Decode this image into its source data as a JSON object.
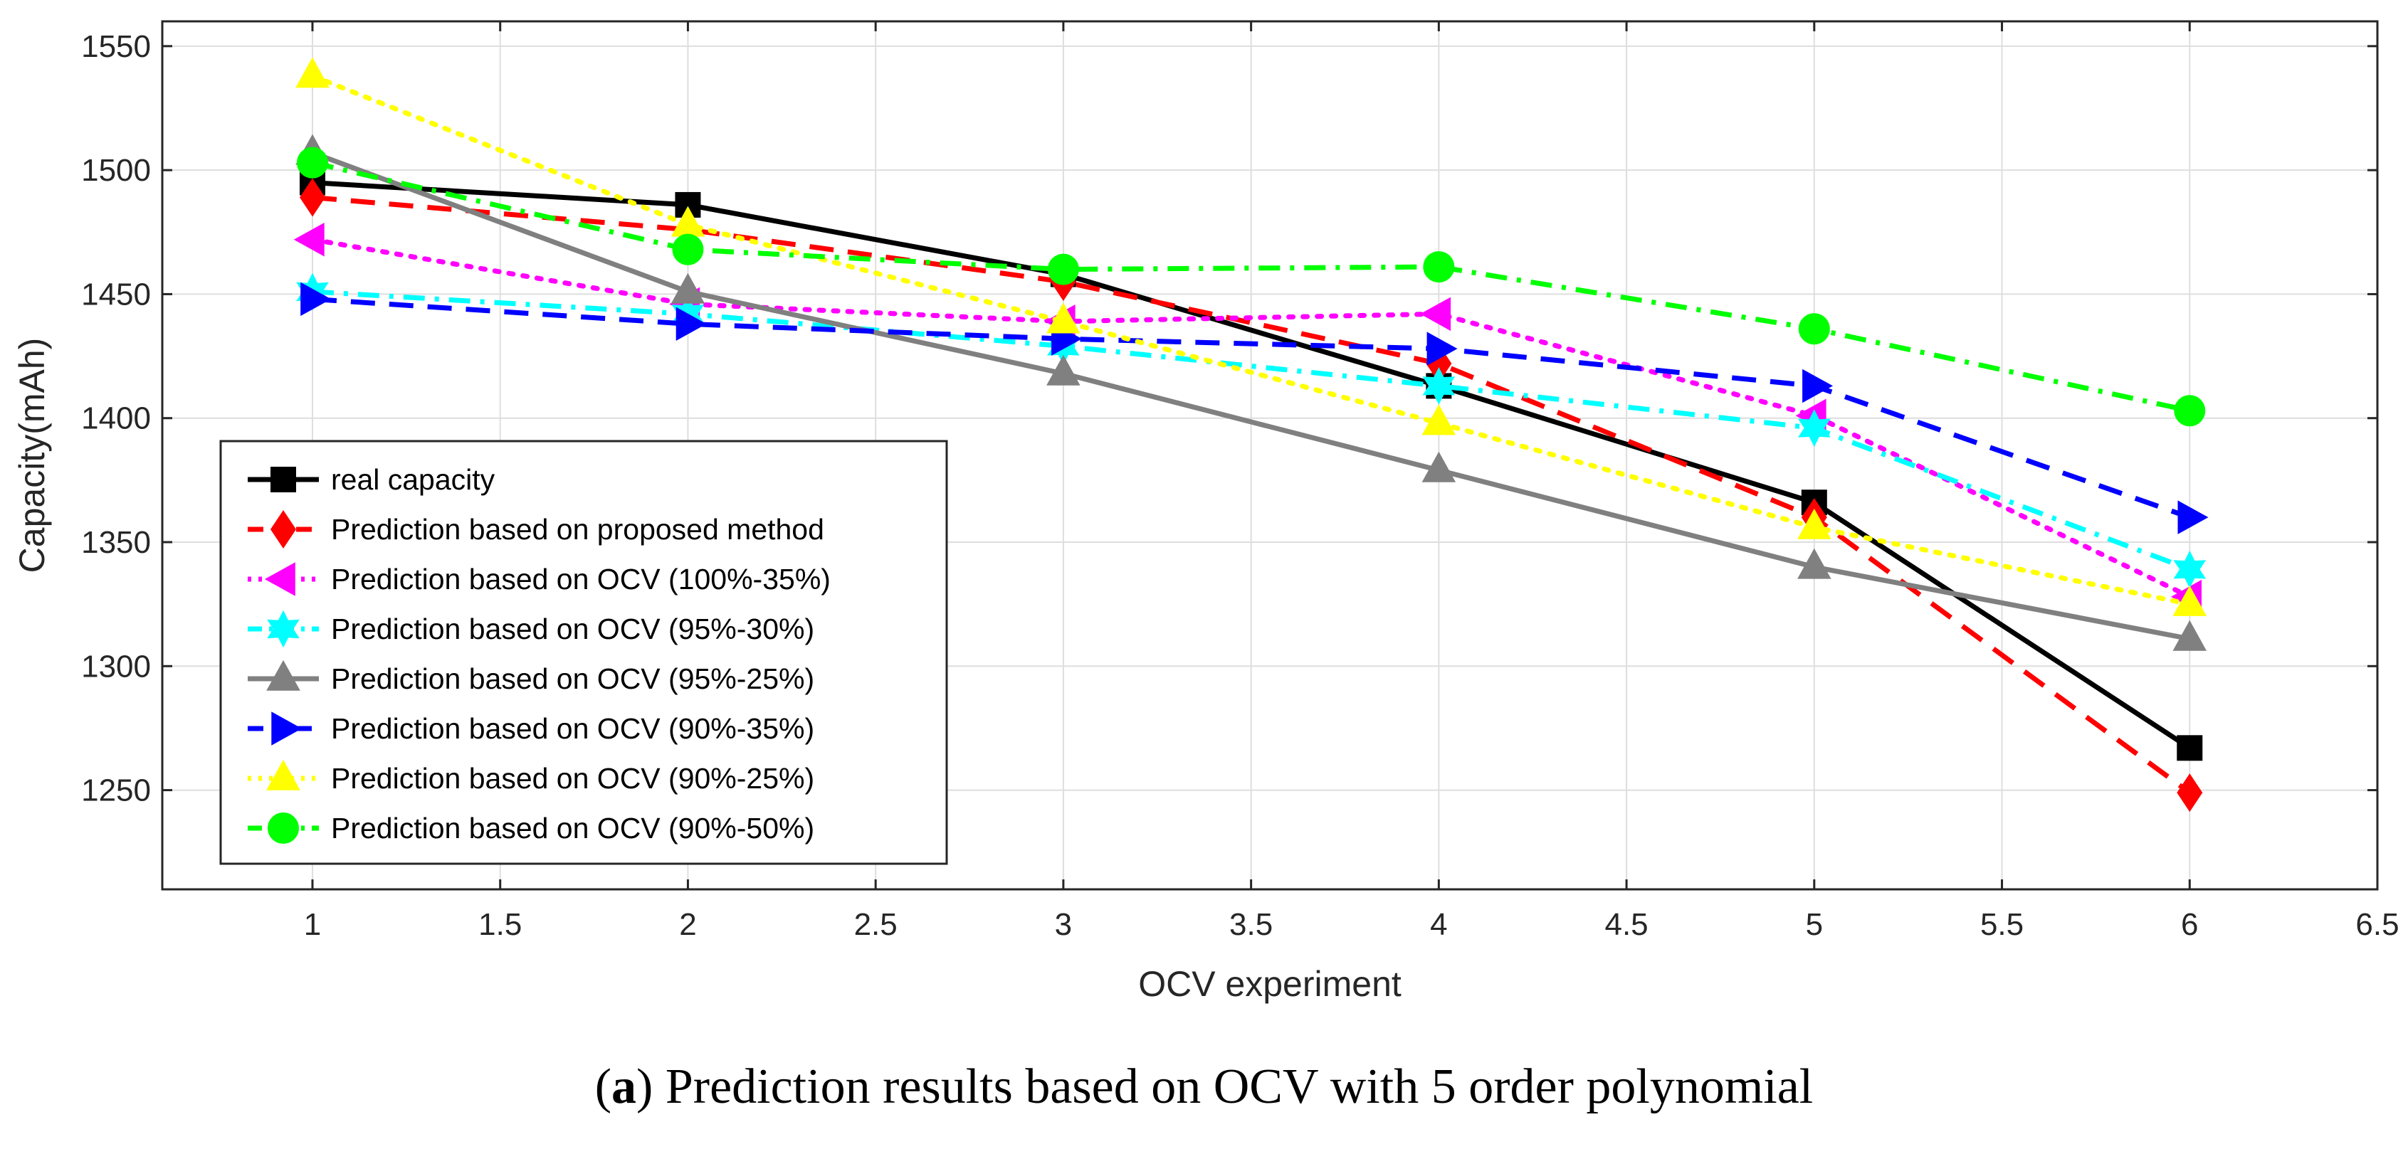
{
  "chart_data": {
    "type": "line",
    "title": "",
    "xlabel": "OCV experiment",
    "ylabel": "Capacity(mAh)",
    "xlim": [
      0.6,
      6.5
    ],
    "ylim": [
      1210,
      1560
    ],
    "xticks": [
      1,
      1.5,
      2,
      2.5,
      3,
      3.5,
      4,
      4.5,
      5,
      5.5,
      6,
      6.5
    ],
    "xtick_labels": [
      "1",
      "1.5",
      "2",
      "2.5",
      "3",
      "3.5",
      "4",
      "4.5",
      "5",
      "5.5",
      "6",
      "6.5"
    ],
    "yticks": [
      1250,
      1300,
      1350,
      1400,
      1450,
      1500,
      1550
    ],
    "ytick_labels": [
      "1250",
      "1300",
      "1350",
      "1400",
      "1450",
      "1500",
      "1550"
    ],
    "grid": true,
    "legend_position": "bottom-left",
    "x": [
      1,
      2,
      3,
      4,
      5,
      6
    ],
    "series": [
      {
        "name": "real capacity",
        "color": "#000000",
        "dash": "solid",
        "marker": "square",
        "values": [
          1495,
          1486,
          1458,
          1413,
          1366,
          1267
        ]
      },
      {
        "name": "Prediction based on proposed method",
        "color": "#ff0000",
        "dash": "dashed",
        "marker": "diamond",
        "values": [
          1489,
          1476,
          1455,
          1422,
          1360,
          1249
        ]
      },
      {
        "name": "Prediction based on OCV (100%-35%)",
        "color": "#ff00ff",
        "dash": "dotted",
        "marker": "triangle-left",
        "values": [
          1472,
          1446,
          1439,
          1442,
          1401,
          1328
        ]
      },
      {
        "name": "Prediction based on OCV (95%-30%)",
        "color": "#00ffff",
        "dash": "dashdot",
        "marker": "hexagram",
        "values": [
          1451,
          1442,
          1429,
          1413,
          1396,
          1339
        ]
      },
      {
        "name": "Prediction based on OCV (95%-25%)",
        "color": "#808080",
        "dash": "solid",
        "marker": "triangle-up",
        "values": [
          1507,
          1451,
          1418,
          1379,
          1340,
          1311
        ]
      },
      {
        "name": "Prediction based on OCV (90%-35%)",
        "color": "#0000ff",
        "dash": "dashed",
        "marker": "triangle-right",
        "values": [
          1448,
          1438,
          1432,
          1428,
          1413,
          1360
        ]
      },
      {
        "name": "Prediction based on OCV (90%-25%)",
        "color": "#ffff00",
        "dash": "dotted",
        "marker": "triangle-up",
        "values": [
          1538,
          1478,
          1439,
          1398,
          1356,
          1325
        ]
      },
      {
        "name": "Prediction based on OCV (90%-50%)",
        "color": "#00ff00",
        "dash": "dashdot",
        "marker": "circle",
        "values": [
          1503,
          1468,
          1460,
          1461,
          1436,
          1403
        ]
      }
    ]
  },
  "caption": {
    "bold": "a",
    "text": ") Prediction results based on OCV with 5 order polynomial",
    "open_paren": "("
  }
}
